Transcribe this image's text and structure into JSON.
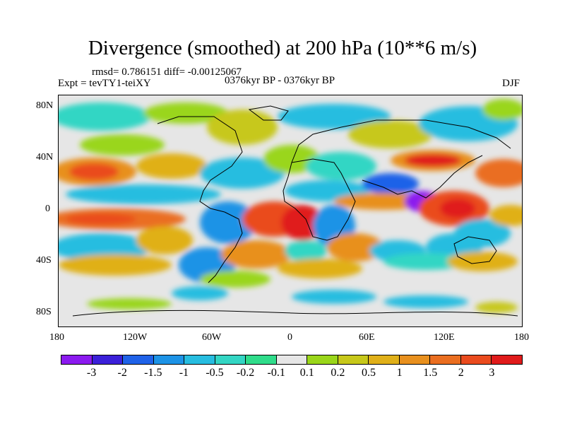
{
  "title": "Divergence (smoothed) at 200 hPa (10**6 m/s)",
  "stats": "rmsd= 0.786151 diff= -0.00125067",
  "experiment": "Expt = tevTY1-teiXY",
  "period": "0376kyr BP - 0376kyr BP",
  "season": "DJF",
  "lat_labels": [
    "80N",
    "40N",
    "0",
    "40S",
    "80S"
  ],
  "lon_labels": [
    "180",
    "120W",
    "60W",
    "0",
    "60E",
    "120E",
    "180"
  ],
  "colorbar": {
    "colors": [
      "#8b1aef",
      "#3b20d9",
      "#1f62e8",
      "#1d93e6",
      "#27bde0",
      "#33d6c4",
      "#2fdc8a",
      "#e6e6e6",
      "#9ad61a",
      "#c7c81a",
      "#e0b019",
      "#e8901e",
      "#ea6e20",
      "#ea4b1e",
      "#e01b1b"
    ],
    "labels": [
      "-3",
      "-2",
      "-1.5",
      "-1",
      "-0.5",
      "-0.2",
      "-0.1",
      "0.1",
      "0.2",
      "0.5",
      "1",
      "1.5",
      "2",
      "3"
    ]
  }
}
